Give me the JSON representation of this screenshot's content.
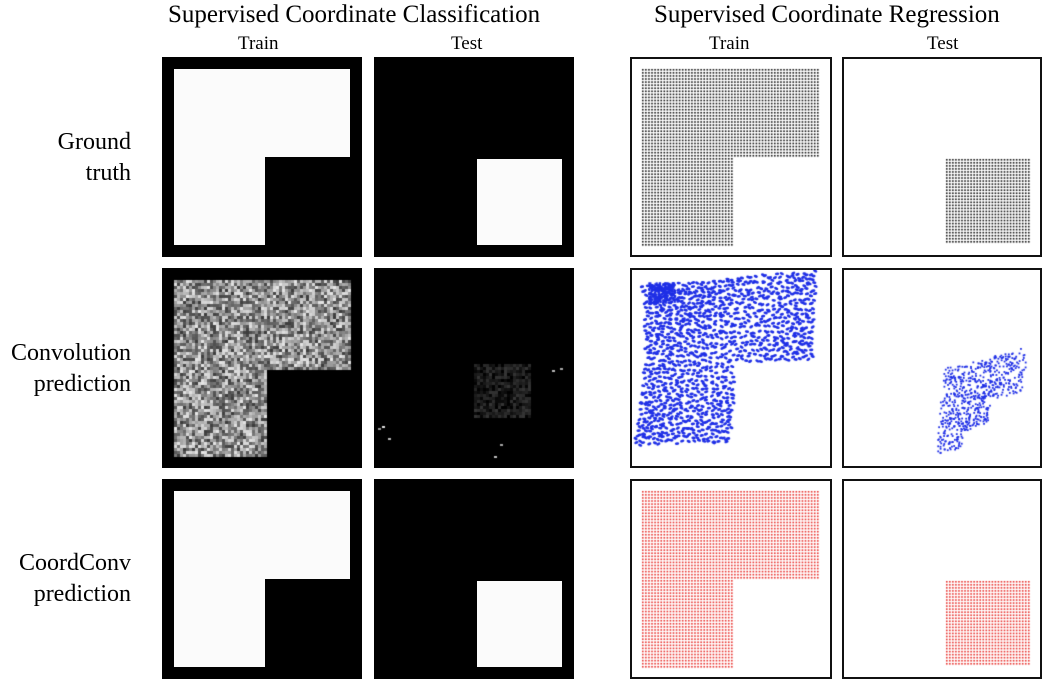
{
  "sections": {
    "classification_title": "Supervised Coordinate Classification",
    "regression_title": "Supervised Coordinate Regression"
  },
  "columns": {
    "cls_train": "Train",
    "cls_test": "Test",
    "reg_train": "Train",
    "reg_test": "Test"
  },
  "rows": {
    "ground_truth": "Ground\ntruth",
    "convolution": "Convolution\nprediction",
    "coordconv": "CoordConv\nprediction"
  },
  "colors": {
    "ground_truth_points": "#111111",
    "convolution_points": "#1f2fe6",
    "coordconv_points": "#e8322e",
    "mask_fill": "#fbfbfb",
    "mask_background": "#000000"
  }
}
